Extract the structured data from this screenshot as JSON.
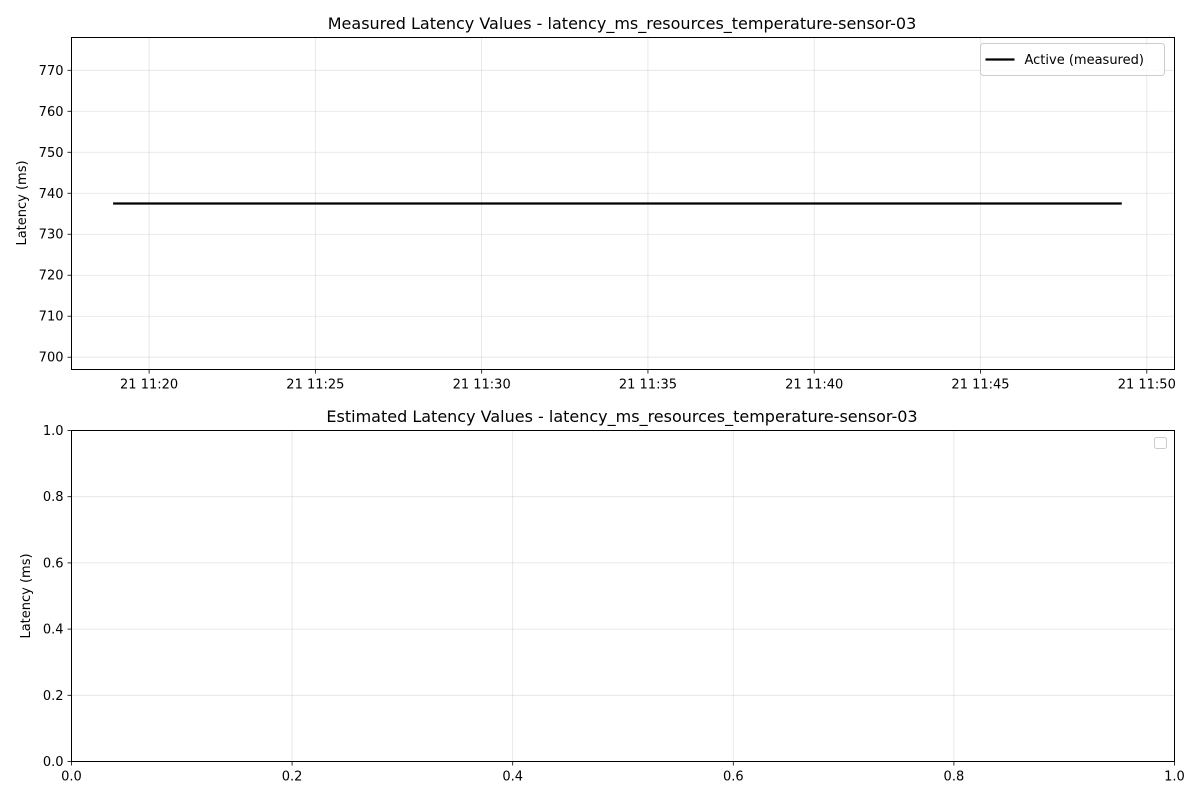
{
  "chart_data": [
    {
      "type": "line",
      "title": "Measured Latency Values - latency_ms_resources_temperature-sensor-03",
      "xlabel": "",
      "ylabel": "Latency (ms)",
      "xlim": [
        "21 11:17:40",
        "21 11:50:50"
      ],
      "ylim": [
        697,
        778
      ],
      "x_ticks": [
        "21 11:20",
        "21 11:25",
        "21 11:30",
        "21 11:35",
        "21 11:40",
        "21 11:45",
        "21 11:50"
      ],
      "y_ticks": [
        700,
        710,
        720,
        730,
        740,
        750,
        760,
        770
      ],
      "grid": true,
      "legend_position": "top-right",
      "series": [
        {
          "name": "Active (measured)",
          "color": "#000000",
          "x": [
            "21 11:18:55",
            "21 11:49:15"
          ],
          "y": [
            737.5,
            737.5
          ]
        }
      ]
    },
    {
      "type": "line",
      "title": "Estimated Latency Values - latency_ms_resources_temperature-sensor-03",
      "xlabel": "",
      "ylabel": "Latency (ms)",
      "xlim": [
        0,
        1
      ],
      "ylim": [
        0,
        1
      ],
      "x_ticks": [
        "0.0",
        "0.2",
        "0.4",
        "0.6",
        "0.8",
        "1.0"
      ],
      "y_ticks": [
        "0.0",
        "0.2",
        "0.4",
        "0.6",
        "0.8",
        "1.0"
      ],
      "grid": true,
      "legend_position": "top-right",
      "series": []
    }
  ]
}
